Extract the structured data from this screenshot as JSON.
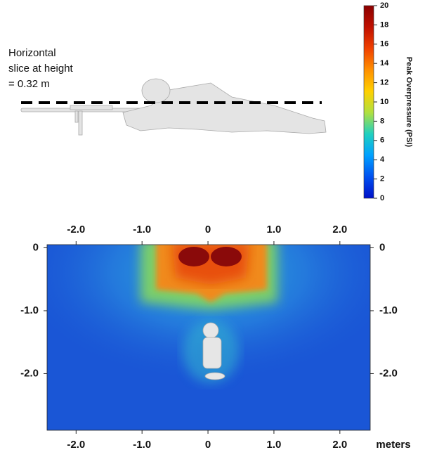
{
  "chart_data": {
    "type": "heatmap",
    "annotation": [
      "Horizontal",
      "slice at height",
      "= 0.32 m"
    ],
    "xlabel": "meters",
    "xlim": [
      -2.44,
      2.46
    ],
    "xticks": [
      {
        "value": -2,
        "label": "-2.0"
      },
      {
        "value": -1,
        "label": "-1.0"
      },
      0,
      {
        "value": 1,
        "label": "1.0"
      },
      {
        "value": 2,
        "label": "2.0"
      }
    ],
    "ylim": [
      -2.9,
      0.05
    ],
    "yticks": [
      0,
      {
        "value": -1,
        "label": "-1.0"
      },
      {
        "value": -2,
        "label": "-2.0"
      }
    ],
    "colorbar": {
      "label": "Peak Overpressure (PSI)",
      "lim": [
        0,
        20
      ],
      "ticks": [
        0,
        2,
        4,
        6,
        8,
        10,
        12,
        14,
        16,
        18,
        20
      ],
      "colors": [
        "#0010c8",
        "#0050f0",
        "#00a0ff",
        "#20d0c0",
        "#b0e040",
        "#ffd000",
        "#ff9000",
        "#f04000",
        "#c01000",
        "#8a0000"
      ]
    }
  }
}
